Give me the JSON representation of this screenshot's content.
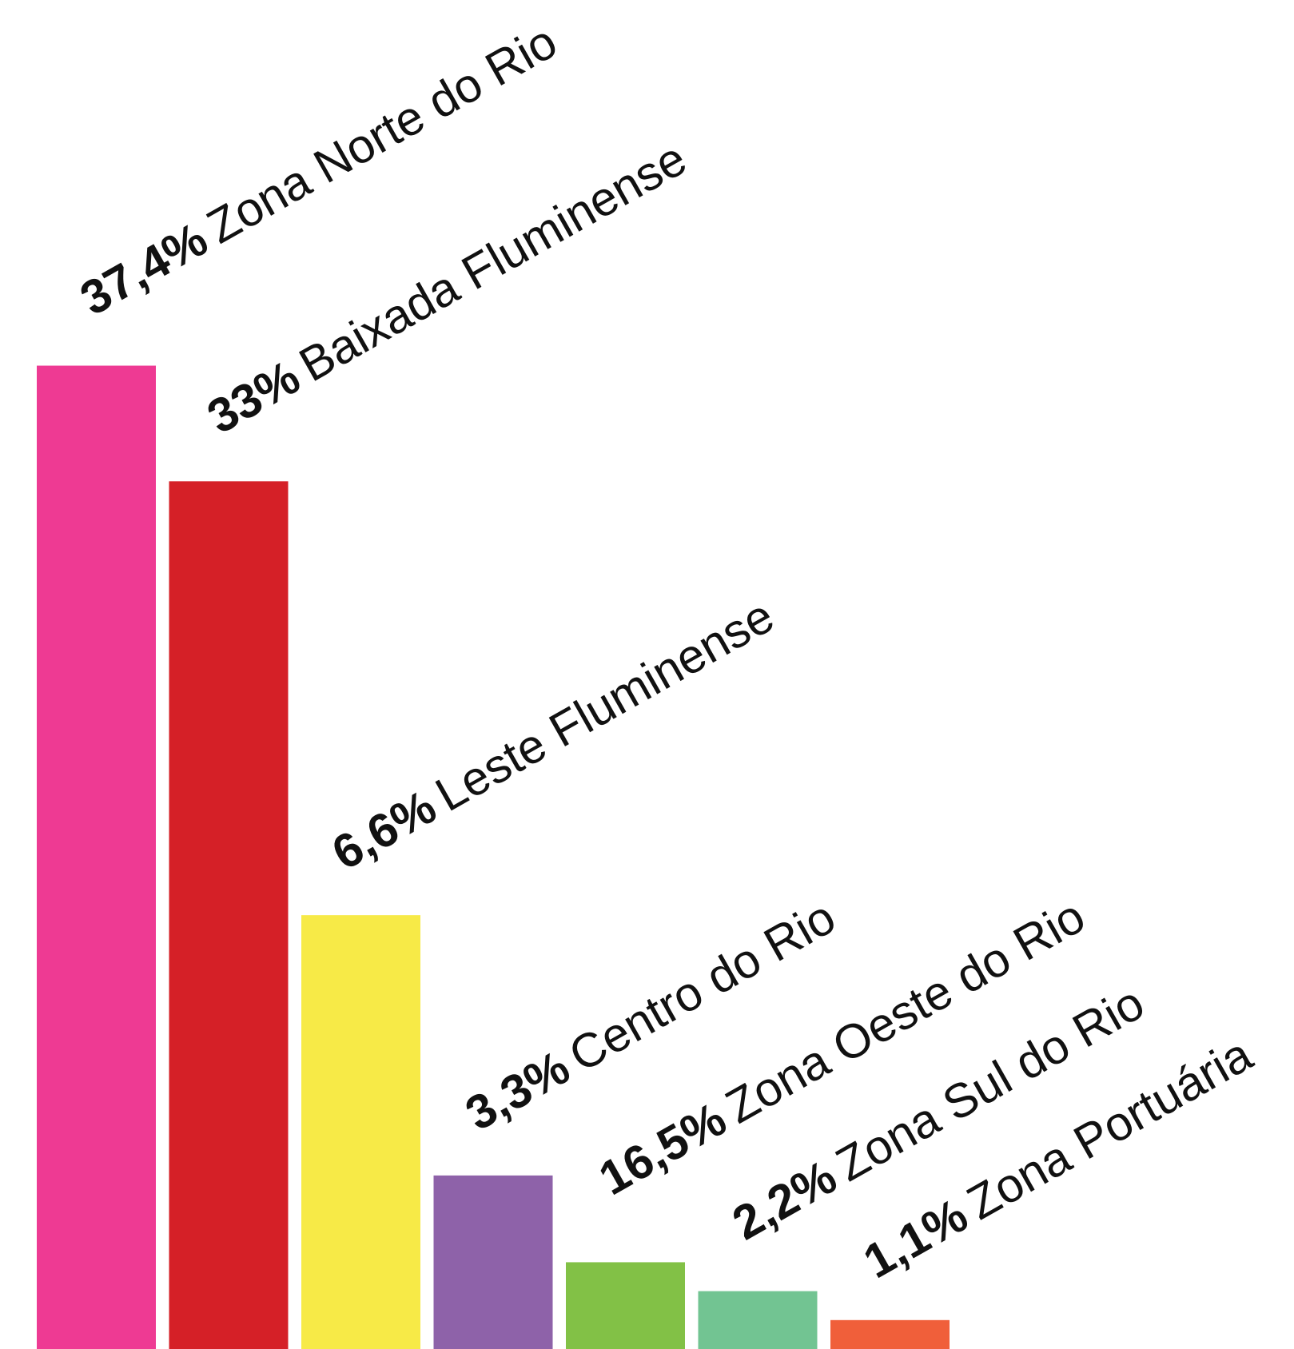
{
  "chart_data": {
    "type": "bar",
    "values": [
      37.4,
      33,
      16.5,
      6.6,
      3.3,
      2.2,
      1.1
    ],
    "colors": [
      "#ee3a93",
      "#d52027",
      "#f7ea47",
      "#8e62a9",
      "#82c146",
      "#72c492",
      "#f05f3a"
    ],
    "annotations": [
      {
        "value": "37,4%",
        "text": "Zona Norte do Rio"
      },
      {
        "value": "33%",
        "text": "Baixada Fluminense"
      },
      {
        "value": "6,6%",
        "text": "Leste Fluminense"
      },
      {
        "value": "3,3%",
        "text": "Centro do Rio"
      },
      {
        "value": "16,5%",
        "text": "Zona Oeste do Rio"
      },
      {
        "value": "2,2%",
        "text": "Zona Sul do Rio"
      },
      {
        "value": "1,1%",
        "text": "Zona Portuária"
      }
    ]
  }
}
